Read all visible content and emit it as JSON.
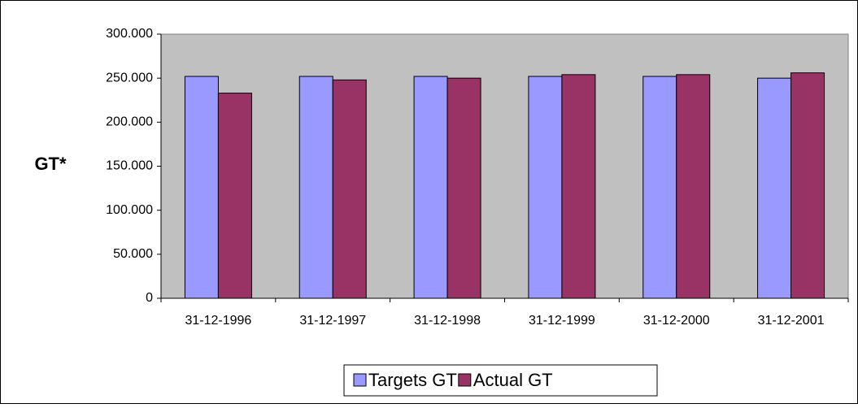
{
  "chart_data": {
    "type": "bar",
    "y_label": "GT*",
    "categories": [
      "31-12-1996",
      "31-12-1997",
      "31-12-1998",
      "31-12-1999",
      "31-12-2000",
      "31-12-2001"
    ],
    "series": [
      {
        "name": "Targets GT",
        "color": "#9999ff",
        "values": [
          252000,
          252000,
          252000,
          252000,
          252000,
          250000
        ]
      },
      {
        "name": "Actual GT",
        "color": "#993366",
        "values": [
          233000,
          248000,
          250000,
          254000,
          254000,
          256000
        ]
      }
    ],
    "ylim": [
      0,
      300000
    ],
    "yticks": [
      {
        "value": 0,
        "label": "0"
      },
      {
        "value": 50000,
        "label": "50.000"
      },
      {
        "value": 100000,
        "label": "100.000"
      },
      {
        "value": 150000,
        "label": "150.000"
      },
      {
        "value": 200000,
        "label": "200.000"
      },
      {
        "value": 250000,
        "label": "250.000"
      },
      {
        "value": 300000,
        "label": "300.000"
      }
    ],
    "grid": false,
    "legend": "bottom"
  }
}
